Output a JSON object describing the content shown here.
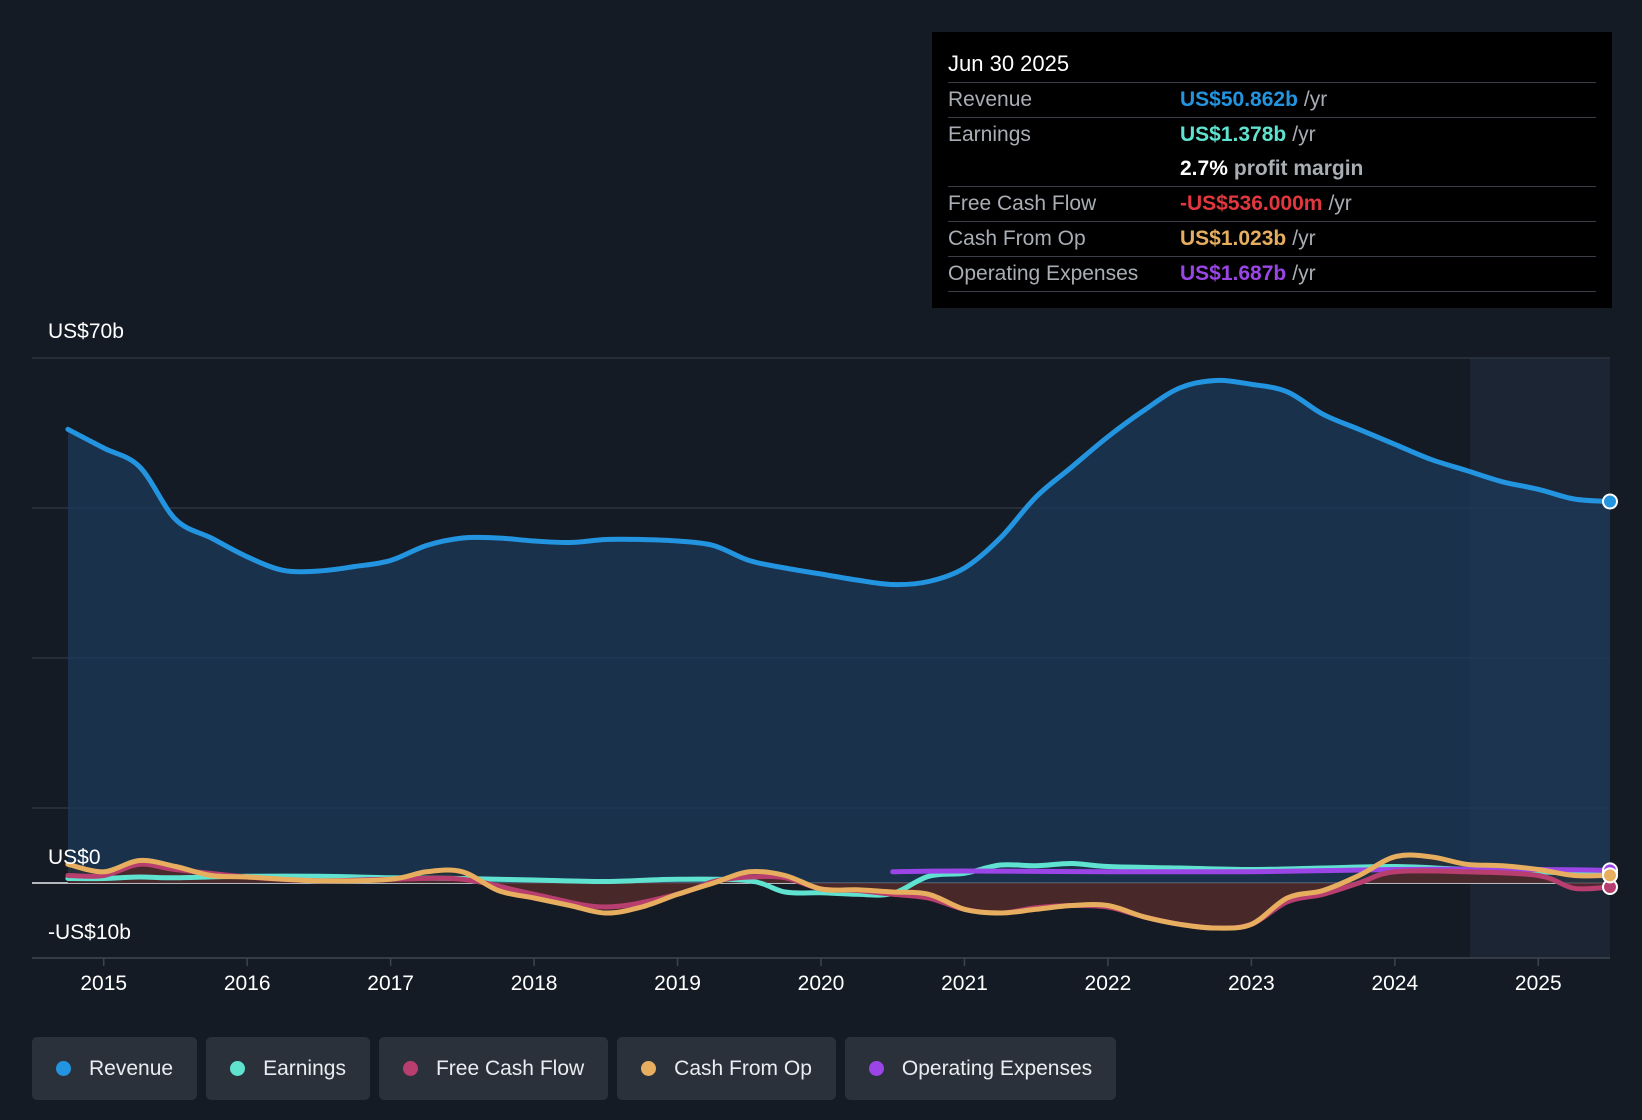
{
  "colors": {
    "revenue": "#2394df",
    "earnings": "#5fe3d0",
    "fcf": "#b73e6e",
    "cfo": "#e6ae5e",
    "opex": "#9b45e6",
    "fcf_text": "#e2373f"
  },
  "tooltip": {
    "date": "Jun 30 2025",
    "rows": [
      {
        "label": "Revenue",
        "value": "US$50.862b",
        "unit": "/yr"
      },
      {
        "label": "Earnings",
        "value": "US$1.378b",
        "unit": "/yr"
      },
      {
        "label": "",
        "value": "2.7%",
        "unit": "profit margin"
      },
      {
        "label": "Free Cash Flow",
        "value": "-US$536.000m",
        "unit": "/yr"
      },
      {
        "label": "Cash From Op",
        "value": "US$1.023b",
        "unit": "/yr"
      },
      {
        "label": "Operating Expenses",
        "value": "US$1.687b",
        "unit": "/yr"
      }
    ]
  },
  "legend": [
    "Revenue",
    "Earnings",
    "Free Cash Flow",
    "Cash From Op",
    "Operating Expenses"
  ],
  "chart_data": {
    "type": "area",
    "ylabel_top": "US$70b",
    "ylabel_zero": "US$0",
    "ylabel_bottom": "-US$10b",
    "ylim": [
      -10,
      70
    ],
    "xlim": [
      2014.5,
      2025.5
    ],
    "x_ticks": [
      "2015",
      "2016",
      "2017",
      "2018",
      "2019",
      "2020",
      "2021",
      "2022",
      "2023",
      "2024",
      "2025"
    ],
    "grid": true,
    "legend_position": "bottom",
    "series": [
      {
        "name": "Revenue",
        "x": [
          2014.75,
          2015.0,
          2015.25,
          2015.5,
          2015.75,
          2016.0,
          2016.25,
          2016.5,
          2016.75,
          2017.0,
          2017.25,
          2017.5,
          2017.75,
          2018.0,
          2018.25,
          2018.5,
          2018.75,
          2019.0,
          2019.25,
          2019.5,
          2019.75,
          2020.0,
          2020.25,
          2020.5,
          2020.75,
          2021.0,
          2021.25,
          2021.5,
          2021.75,
          2022.0,
          2022.25,
          2022.5,
          2022.75,
          2023.0,
          2023.25,
          2023.5,
          2023.75,
          2024.0,
          2024.25,
          2024.5,
          2024.75,
          2025.0,
          2025.25,
          2025.5
        ],
        "values": [
          60.5,
          58.0,
          55.5,
          48.5,
          46.0,
          43.5,
          41.7,
          41.6,
          42.2,
          43.0,
          45.0,
          46.0,
          46.0,
          45.6,
          45.4,
          45.8,
          45.8,
          45.6,
          45.0,
          43.0,
          42.0,
          41.2,
          40.4,
          39.8,
          40.2,
          42.0,
          46.0,
          51.5,
          55.5,
          59.5,
          63.0,
          66.0,
          67.0,
          66.5,
          65.5,
          62.5,
          60.5,
          58.5,
          56.5,
          55.0,
          53.5,
          52.5,
          51.2,
          50.862
        ]
      },
      {
        "name": "Earnings",
        "x": [
          2014.75,
          2015.0,
          2015.25,
          2015.5,
          2016.0,
          2016.5,
          2017.0,
          2017.5,
          2018.0,
          2018.5,
          2019.0,
          2019.5,
          2019.75,
          2020.0,
          2020.25,
          2020.5,
          2020.75,
          2021.0,
          2021.25,
          2021.5,
          2021.75,
          2022.0,
          2022.5,
          2023.0,
          2023.5,
          2024.0,
          2024.5,
          2025.0,
          2025.25,
          2025.5
        ],
        "values": [
          0.6,
          0.6,
          0.8,
          0.7,
          0.9,
          0.9,
          0.7,
          0.6,
          0.4,
          0.2,
          0.5,
          0.3,
          -1.2,
          -1.3,
          -1.5,
          -1.4,
          0.9,
          1.3,
          2.4,
          2.3,
          2.6,
          2.2,
          2.0,
          1.8,
          2.0,
          2.2,
          1.8,
          1.5,
          1.3,
          1.378
        ]
      },
      {
        "name": "Free Cash Flow",
        "x": [
          2014.75,
          2015.0,
          2015.25,
          2015.5,
          2016.0,
          2016.5,
          2017.0,
          2017.5,
          2018.0,
          2018.5,
          2019.0,
          2019.25,
          2019.5,
          2019.75,
          2020.0,
          2020.25,
          2020.5,
          2020.75,
          2021.0,
          2021.25,
          2021.5,
          2021.75,
          2022.0,
          2022.25,
          2022.5,
          2022.75,
          2023.0,
          2023.25,
          2023.5,
          2023.75,
          2024.0,
          2024.5,
          2025.0,
          2025.25,
          2025.5
        ],
        "values": [
          1.0,
          1.0,
          2.5,
          1.8,
          0.8,
          0.3,
          0.5,
          0.5,
          -1.5,
          -3.2,
          -1.5,
          0.2,
          0.8,
          0.7,
          -0.8,
          -1.0,
          -1.5,
          -2.0,
          -3.5,
          -4.0,
          -3.3,
          -3.0,
          -3.2,
          -4.5,
          -5.5,
          -6.0,
          -5.5,
          -2.5,
          -1.5,
          0.0,
          1.5,
          1.5,
          1.0,
          -0.7,
          -0.536
        ]
      },
      {
        "name": "Cash From Op",
        "x": [
          2014.75,
          2015.0,
          2015.25,
          2015.5,
          2015.75,
          2016.0,
          2016.5,
          2017.0,
          2017.25,
          2017.5,
          2017.75,
          2018.0,
          2018.25,
          2018.5,
          2018.75,
          2019.0,
          2019.25,
          2019.5,
          2019.75,
          2020.0,
          2020.25,
          2020.5,
          2020.75,
          2021.0,
          2021.25,
          2021.5,
          2021.75,
          2022.0,
          2022.25,
          2022.5,
          2022.75,
          2023.0,
          2023.25,
          2023.5,
          2023.75,
          2024.0,
          2024.25,
          2024.5,
          2024.75,
          2025.0,
          2025.25,
          2025.5
        ],
        "values": [
          2.5,
          1.5,
          3.0,
          2.2,
          1.0,
          0.8,
          0.3,
          0.5,
          1.5,
          1.5,
          -1.0,
          -2.0,
          -3.0,
          -4.0,
          -3.2,
          -1.5,
          0.0,
          1.5,
          1.0,
          -0.8,
          -0.9,
          -1.2,
          -1.5,
          -3.5,
          -4.0,
          -3.5,
          -3.0,
          -3.0,
          -4.5,
          -5.5,
          -6.0,
          -5.5,
          -2.0,
          -1.0,
          1.0,
          3.5,
          3.5,
          2.5,
          2.3,
          1.8,
          1.0,
          1.023
        ]
      },
      {
        "name": "Operating Expenses",
        "x": [
          2020.5,
          2021.0,
          2022.0,
          2023.0,
          2024.0,
          2025.0,
          2025.5
        ],
        "values": [
          1.5,
          1.6,
          1.5,
          1.5,
          1.8,
          1.8,
          1.687
        ]
      }
    ]
  }
}
